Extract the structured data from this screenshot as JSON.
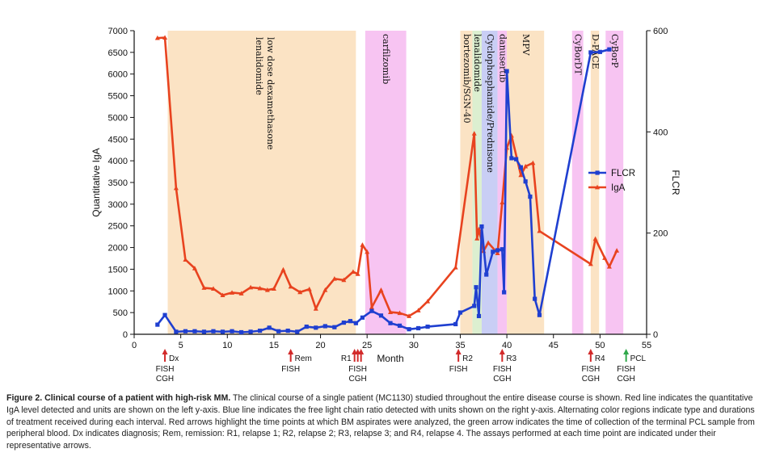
{
  "chart_data": {
    "type": "line",
    "xlabel": "Month",
    "ylabel_left": "Quantitative IgA",
    "ylabel_right": "FLCR",
    "xlim": [
      0,
      55
    ],
    "x_ticks": [
      0,
      5,
      10,
      15,
      20,
      25,
      30,
      35,
      40,
      45,
      50,
      55
    ],
    "ylim_left": [
      0,
      7000
    ],
    "y_ticks_left": [
      0,
      500,
      1000,
      1500,
      2000,
      2500,
      3000,
      3500,
      4000,
      4500,
      5000,
      5500,
      6000,
      6500,
      7000
    ],
    "ylim_right": [
      0,
      600
    ],
    "y_ticks_right": [
      0,
      200,
      400,
      600
    ],
    "legend": {
      "position": "right",
      "entries": [
        "FLCR",
        "IgA"
      ]
    },
    "bands": [
      {
        "label": "lenalidomide",
        "label2": "low dose dexamethasone",
        "x0": 3.6,
        "x1": 23.8,
        "color": "#fbe3c4"
      },
      {
        "label": "carfilzomib",
        "x0": 24.8,
        "x1": 29.2,
        "color": "#f7c4f2"
      },
      {
        "label": "bortezomib/SGN-40",
        "x0": 35.0,
        "x1": 36.3,
        "color": "#fbe3c4"
      },
      {
        "label": "lenalidomide",
        "x0": 36.3,
        "x1": 37.3,
        "color": "#dcefd0"
      },
      {
        "label": "Cyclophosphamide/Prednisone",
        "x0": 37.3,
        "x1": 39.0,
        "color": "#c9cef5"
      },
      {
        "label": "danusertib",
        "x0": 39.0,
        "x1": 40.0,
        "color": "#f7c4f2"
      },
      {
        "label": "MPV",
        "x0": 40.0,
        "x1": 44.0,
        "color": "#fbe3c4"
      },
      {
        "label": "CyBorDT",
        "x0": 47.0,
        "x1": 48.2,
        "color": "#f7c4f2"
      },
      {
        "label": "D-PACE",
        "x0": 49.0,
        "x1": 49.9,
        "color": "#fbe3c4"
      },
      {
        "label": "CyBorP",
        "x0": 50.6,
        "x1": 52.5,
        "color": "#f7c4f2"
      }
    ],
    "series": [
      {
        "name": "IgA",
        "axis": "left",
        "color": "#e8431f",
        "marker": "triangle",
        "x": [
          2.5,
          3.3,
          4.5,
          5.5,
          6.5,
          7.5,
          8.5,
          9.5,
          10.5,
          11.5,
          12.5,
          13.5,
          14.3,
          15.0,
          16.0,
          16.8,
          17.8,
          18.8,
          19.5,
          20.5,
          21.5,
          22.5,
          23.5,
          24.0,
          24.5,
          25.0,
          25.5,
          26.5,
          27.5,
          28.5,
          29.5,
          30.5,
          31.5,
          34.5,
          36.5,
          36.8,
          37.0,
          37.5,
          38.0,
          39.0,
          39.5,
          40.0,
          40.5,
          41.5,
          42.0,
          42.8,
          43.5,
          49.0,
          49.5,
          50.5,
          51.0,
          51.8
        ],
        "values": [
          6830,
          6840,
          3370,
          1720,
          1520,
          1070,
          1050,
          900,
          960,
          940,
          1080,
          1060,
          1020,
          1050,
          1490,
          1100,
          970,
          1040,
          590,
          1020,
          1280,
          1250,
          1440,
          1390,
          2060,
          1900,
          620,
          1020,
          510,
          490,
          420,
          550,
          760,
          1540,
          4630,
          2210,
          2420,
          1920,
          2110,
          1870,
          3040,
          4300,
          4580,
          3670,
          3870,
          3950,
          2380,
          1620,
          2200,
          1760,
          1560,
          1930
        ]
      },
      {
        "name": "FLCR",
        "axis": "right",
        "color": "#1f3fd0",
        "marker": "square",
        "x": [
          2.5,
          3.3,
          4.5,
          5.5,
          6.5,
          7.5,
          8.5,
          9.5,
          10.5,
          11.5,
          12.5,
          13.5,
          14.5,
          15.5,
          16.5,
          17.5,
          18.5,
          19.5,
          20.5,
          21.5,
          22.5,
          23.2,
          23.8,
          24.5,
          25.5,
          26.5,
          27.5,
          28.5,
          29.5,
          30.5,
          31.5,
          34.5,
          35.0,
          36.5,
          36.7,
          37.0,
          37.3,
          37.8,
          38.5,
          39.0,
          39.5,
          39.7,
          40.0,
          40.5,
          41.0,
          41.5,
          42.0,
          42.5,
          43.0,
          43.5,
          49.0,
          50.0,
          51.0
        ],
        "values": [
          19,
          38,
          5,
          6,
          6,
          5,
          6,
          5,
          6,
          4,
          5,
          7,
          13,
          6,
          7,
          5,
          15,
          13,
          16,
          14,
          23,
          26,
          22,
          33,
          46,
          37,
          22,
          17,
          10,
          12,
          15,
          20,
          43,
          56,
          93,
          36,
          213,
          118,
          163,
          166,
          168,
          83,
          520,
          348,
          346,
          330,
          302,
          272,
          70,
          38,
          557,
          558,
          563
        ]
      }
    ],
    "events": [
      {
        "x": 3.3,
        "color": "#d22a2a",
        "arrows": 1,
        "label": "Dx",
        "tests": [
          "FISH",
          "CGH"
        ]
      },
      {
        "x": 16.8,
        "color": "#d22a2a",
        "arrows": 1,
        "label": "Rem",
        "tests": [
          "FISH"
        ]
      },
      {
        "x": 24.0,
        "color": "#d22a2a",
        "arrows": 3,
        "label": "R1",
        "tests": [
          "FISH",
          "CGH"
        ]
      },
      {
        "x": 34.8,
        "color": "#d22a2a",
        "arrows": 1,
        "label": "R2",
        "tests": [
          "FISH"
        ]
      },
      {
        "x": 39.5,
        "color": "#d22a2a",
        "arrows": 1,
        "label": "R3",
        "tests": [
          "FISH",
          "CGH"
        ]
      },
      {
        "x": 49.0,
        "color": "#d22a2a",
        "arrows": 1,
        "label": "R4",
        "tests": [
          "FISH",
          "CGH"
        ]
      },
      {
        "x": 52.8,
        "color": "#2fa84a",
        "arrows": 1,
        "label": "PCL",
        "tests": [
          "FISH",
          "CGH"
        ]
      }
    ]
  },
  "caption": {
    "bold": "Figure 2. Clinical course of a patient with high-risk MM.",
    "text": " The clinical course of a single patient (MC1130) studied throughout the entire disease course is shown. Red line indicates the quantitative IgA level detected and units are shown on the left y-axis. Blue line indicates the free light chain ratio detected with units shown on the right y-axis. Alternating color regions indicate type and durations of treatment received during each interval. Red arrows highlight the time points at which BM aspirates were analyzed, the green arrow indicates the time of collection of the terminal PCL sample from peripheral blood. Dx indicates diagnosis; Rem, remission: R1, relapse 1; R2, relapse 2; R3, relapse 3; and R4, relapse 4. The assays performed at each time point are indicated under their representative arrows."
  }
}
